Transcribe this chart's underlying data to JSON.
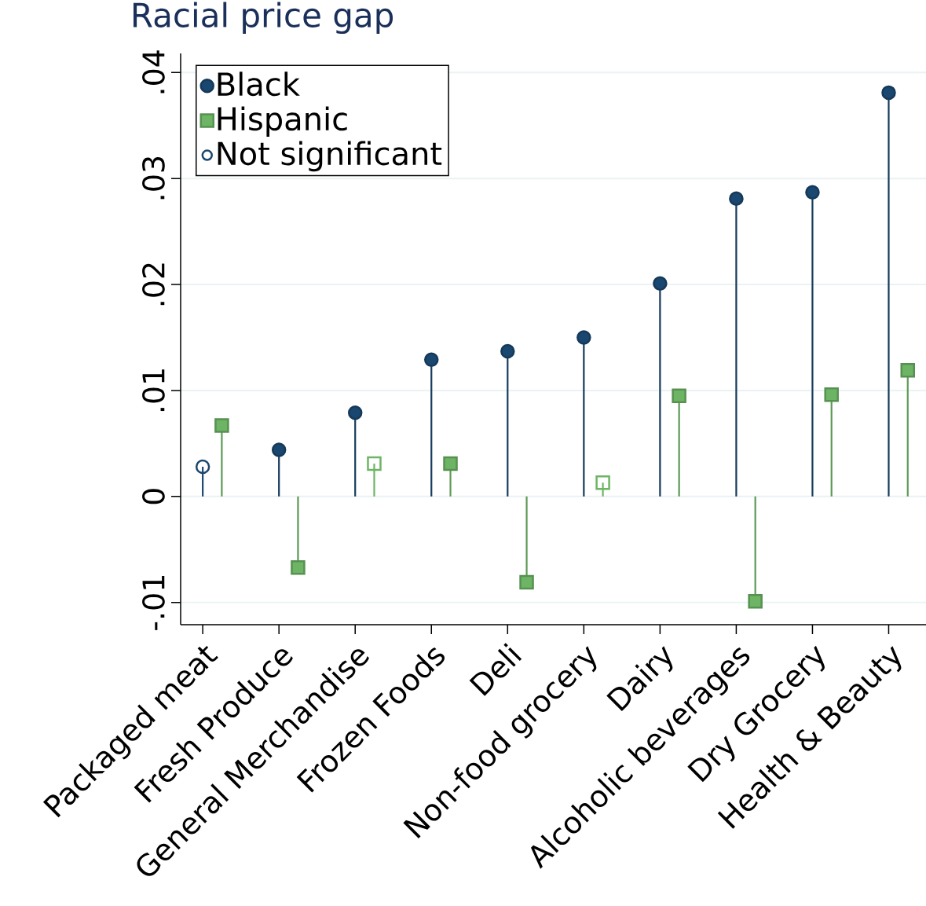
{
  "chart_data": {
    "type": "lollipop",
    "title": "Racial price gap",
    "categories": [
      "Packaged meat",
      "Fresh Produce",
      "General Merchandise",
      "Frozen Foods",
      "Deli",
      "Non-food grocery",
      "Dairy",
      "Alcoholic beverages",
      "Dry Grocery",
      "Health & Beauty"
    ],
    "series": [
      {
        "name": "Black",
        "color": "#1a476f",
        "marker": "circle",
        "values": [
          null,
          0.0044,
          0.0079,
          0.0129,
          0.0137,
          0.015,
          0.0201,
          0.0281,
          0.0287,
          0.0381
        ]
      },
      {
        "name": "Hispanic",
        "color": "#6db565",
        "marker": "square",
        "values": [
          0.0067,
          -0.0067,
          null,
          0.0031,
          -0.0081,
          null,
          0.0095,
          -0.0099,
          0.0096,
          0.0119
        ]
      },
      {
        "name": "Not significant",
        "color": "#1a476f",
        "marker": "circle",
        "colors": [
          "#1a476f",
          null,
          "#6db565",
          null,
          null,
          "#6db565",
          null,
          null,
          null,
          null
        ],
        "values": [
          0.0028,
          null,
          0.0031,
          null,
          null,
          0.0013,
          null,
          null,
          null,
          null
        ]
      }
    ],
    "ylim": [
      -0.0121,
      0.0418
    ],
    "yticks": [
      {
        "value": -0.01,
        "label": "-.01"
      },
      {
        "value": 0,
        "label": "0"
      },
      {
        "value": 0.01,
        "label": ".01"
      },
      {
        "value": 0.02,
        "label": ".02"
      },
      {
        "value": 0.03,
        "label": ".03"
      },
      {
        "value": 0.04,
        "label": ".04"
      }
    ],
    "grid": "y",
    "legend": "top left"
  }
}
